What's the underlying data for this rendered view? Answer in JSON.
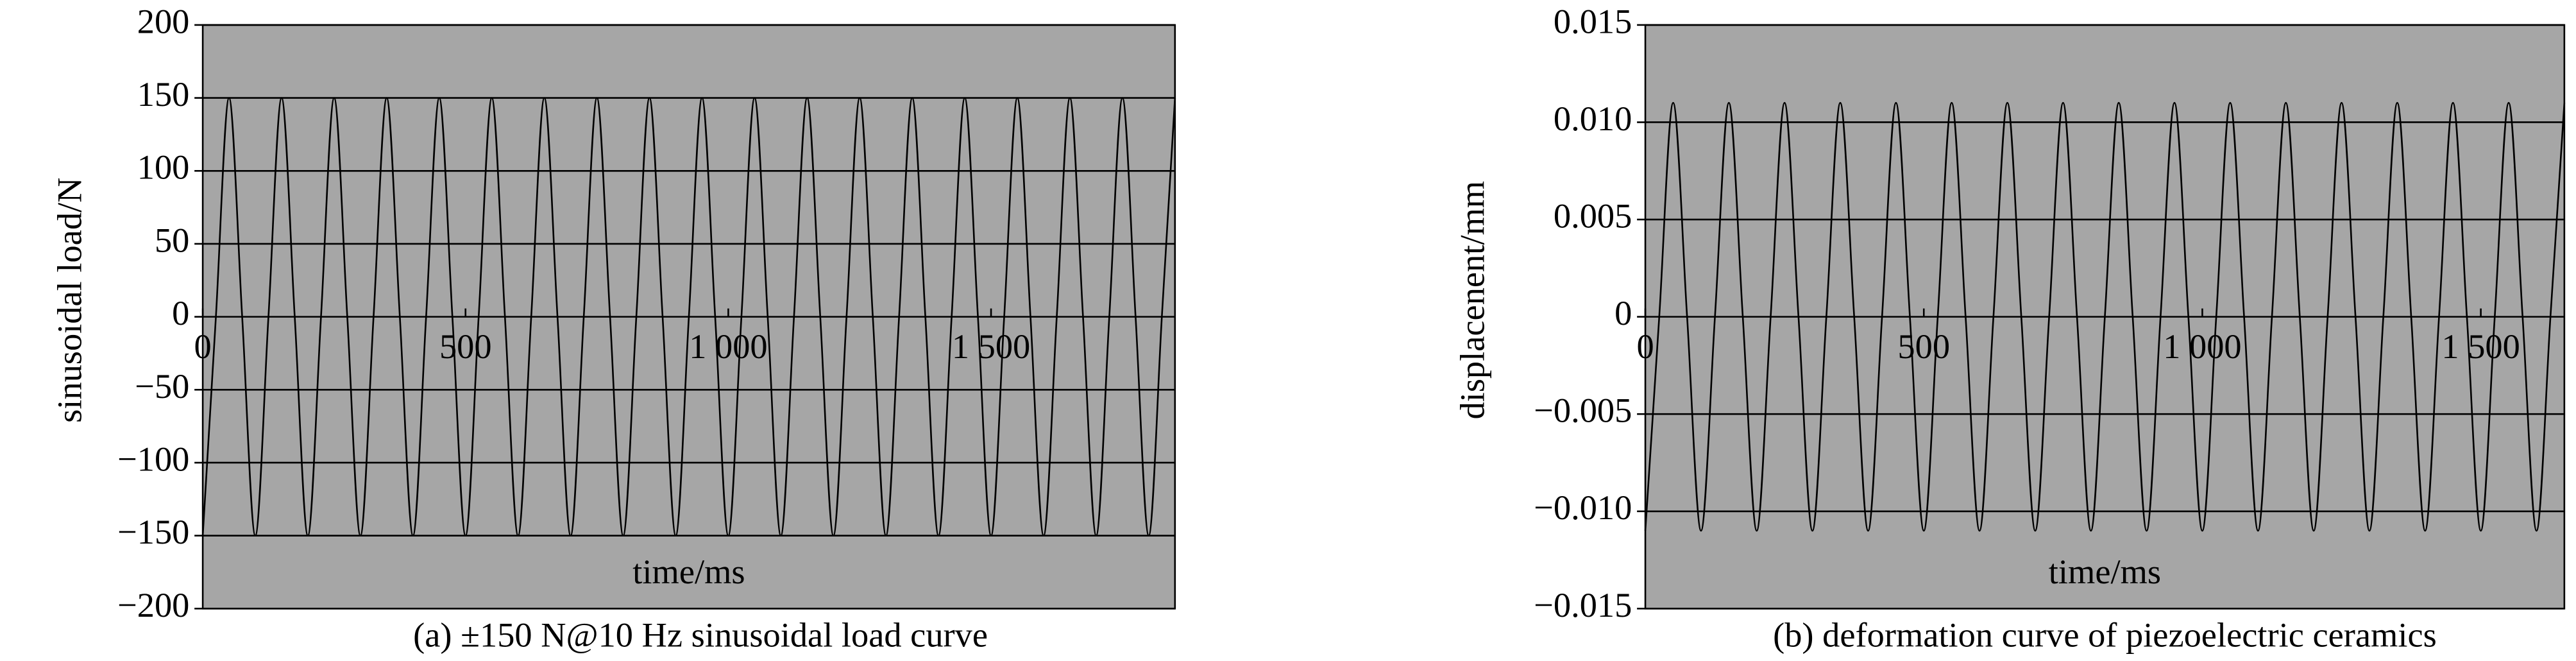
{
  "chart_data": [
    {
      "type": "line",
      "y_label": "sinusoidal load/N",
      "x_label": "time/ms",
      "caption": "(a) ±150 N@10 Hz sinusoidal load curve",
      "background": "#a6a6a6",
      "grid": true,
      "xlim": [
        0,
        1850
      ],
      "xticks": [
        0,
        500,
        {
          "value": 1000,
          "label": "1 000"
        },
        {
          "value": 1500,
          "label": "1 500"
        }
      ],
      "ylim": [
        -200,
        200
      ],
      "yticks": [
        {
          "value": -200,
          "label": "−200"
        },
        {
          "value": -150,
          "label": "−150"
        },
        {
          "value": -100,
          "label": "−100"
        },
        {
          "value": -50,
          "label": "−50"
        },
        0,
        50,
        100,
        150,
        200
      ],
      "x": [
        0,
        25,
        50,
        75,
        100,
        125,
        150,
        175,
        200,
        225,
        250,
        275,
        300,
        325,
        350,
        375,
        400,
        425,
        450,
        475,
        500,
        525,
        550,
        575,
        600,
        625,
        650,
        675,
        700,
        725,
        750,
        775,
        800,
        825,
        850,
        875,
        900,
        925,
        950,
        975,
        1000,
        1025,
        1050,
        1075,
        1100,
        1125,
        1150,
        1175,
        1200,
        1225,
        1250,
        1275,
        1300,
        1325,
        1350,
        1375,
        1400,
        1425,
        1450,
        1475,
        1500,
        1525,
        1550,
        1575,
        1600,
        1625,
        1650,
        1675,
        1700,
        1725,
        1750,
        1775,
        1800,
        1825,
        1850
      ],
      "series": [
        {
          "color": "#000000",
          "values": [
            -150,
            0,
            150,
            0,
            -150,
            0,
            150,
            0,
            -150,
            0,
            150,
            0,
            -150,
            0,
            150,
            0,
            -150,
            0,
            150,
            0,
            -150,
            0,
            150,
            0,
            -150,
            0,
            150,
            0,
            -150,
            0,
            150,
            0,
            -150,
            0,
            150,
            0,
            -150,
            0,
            150,
            0,
            -150,
            0,
            150,
            0,
            -150,
            0,
            150,
            0,
            -150,
            0,
            150,
            0,
            -150,
            0,
            150,
            0,
            -150,
            0,
            150,
            0,
            -150,
            0,
            150,
            0,
            -150,
            0,
            150,
            0,
            -150,
            0,
            150,
            0,
            -150,
            0,
            150
          ]
        }
      ]
    },
    {
      "type": "line",
      "y_label": "displacenent/mm",
      "x_label": "time/ms",
      "caption": "(b) deformation curve of piezoelectric ceramics",
      "background": "#a6a6a6",
      "grid": true,
      "xlim": [
        0,
        1650
      ],
      "xticks": [
        0,
        500,
        {
          "value": 1000,
          "label": "1 000"
        },
        {
          "value": 1500,
          "label": "1 500"
        }
      ],
      "ylim": [
        -0.015,
        0.015
      ],
      "yticks": [
        {
          "value": -0.015,
          "label": "−0.015"
        },
        {
          "value": -0.01,
          "label": "−0.010"
        },
        {
          "value": -0.005,
          "label": "−0.005"
        },
        0,
        0.005,
        {
          "value": 0.01,
          "label": "0.010"
        },
        0.015
      ],
      "x": [
        0,
        25,
        50,
        75,
        100,
        125,
        150,
        175,
        200,
        225,
        250,
        275,
        300,
        325,
        350,
        375,
        400,
        425,
        450,
        475,
        500,
        525,
        550,
        575,
        600,
        625,
        650,
        675,
        700,
        725,
        750,
        775,
        800,
        825,
        850,
        875,
        900,
        925,
        950,
        975,
        1000,
        1025,
        1050,
        1075,
        1100,
        1125,
        1150,
        1175,
        1200,
        1225,
        1250,
        1275,
        1300,
        1325,
        1350,
        1375,
        1400,
        1425,
        1450,
        1475,
        1500,
        1525,
        1550,
        1575,
        1600,
        1625,
        1650
      ],
      "series": [
        {
          "color": "#000000",
          "values": [
            -0.011,
            0,
            0.011,
            0,
            -0.011,
            0,
            0.011,
            0,
            -0.011,
            0,
            0.011,
            0,
            -0.011,
            0,
            0.011,
            0,
            -0.011,
            0,
            0.011,
            0,
            -0.011,
            0,
            0.011,
            0,
            -0.011,
            0,
            0.011,
            0,
            -0.011,
            0,
            0.011,
            0,
            -0.011,
            0,
            0.011,
            0,
            -0.011,
            0,
            0.011,
            0,
            -0.011,
            0,
            0.011,
            0,
            -0.011,
            0,
            0.011,
            0,
            -0.011,
            0,
            0.011,
            0,
            -0.011,
            0,
            0.011,
            0,
            -0.011,
            0,
            0.011,
            0,
            -0.011,
            0,
            0.011,
            0,
            -0.011,
            0,
            0.011
          ]
        }
      ]
    }
  ]
}
